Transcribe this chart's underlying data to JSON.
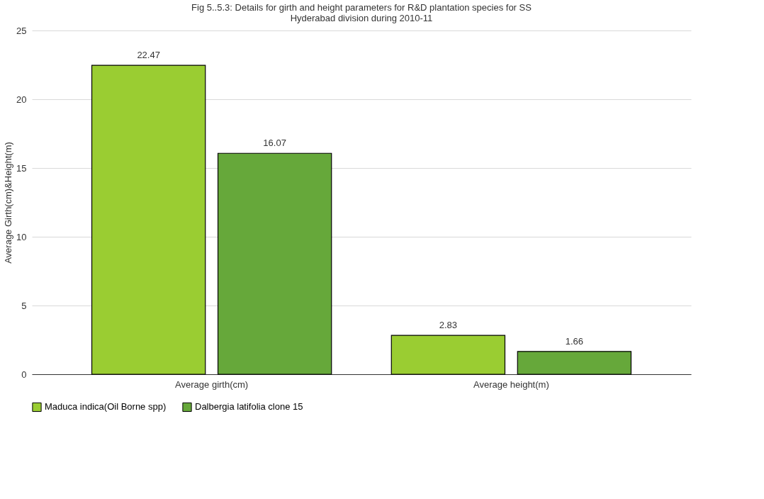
{
  "chart_data": {
    "type": "bar",
    "title": [
      "Fig 5..5.3: Details for girth and height parameters for R&D plantation species for SS",
      "Hyderabad division during 2010-11"
    ],
    "ylabel": "Average Girth(cm)&Height(m)",
    "categories": [
      "Average girth(cm)",
      "Average height(m)"
    ],
    "series": [
      {
        "name": "Maduca indica(Oil Borne spp)",
        "color": "#9acd32",
        "values": [
          22.47,
          2.83
        ]
      },
      {
        "name": "Dalbergia latifolia clone 15",
        "color": "#66a83a",
        "values": [
          16.07,
          1.66
        ]
      }
    ],
    "ylim": [
      0,
      25
    ],
    "yticks": [
      0,
      5,
      10,
      15,
      20,
      25
    ],
    "grid": "y",
    "legend": "bottom",
    "data_labels": true
  }
}
